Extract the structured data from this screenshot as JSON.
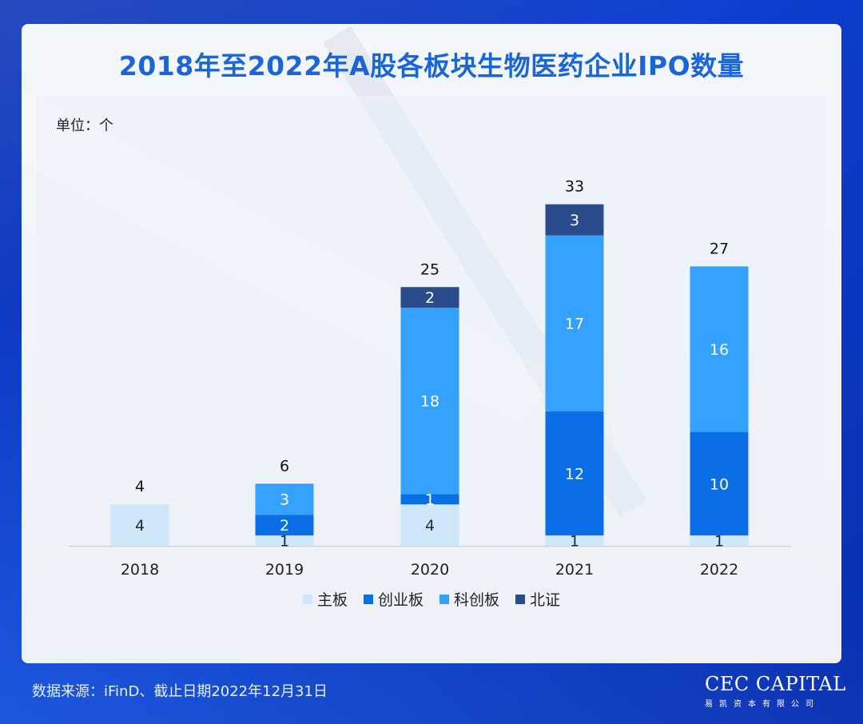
{
  "header": {
    "title": "2018年至2022年A股各板块生物医药企业IPO数量"
  },
  "unit_label": "单位：个",
  "colors": {
    "主板": "#cfe6fb",
    "创业板": "#0a6ee6",
    "科创板": "#34a0ff",
    "北证": "#2a4b8c"
  },
  "chart_data": {
    "type": "bar",
    "stacked": true,
    "title": "2018年至2022年A股各板块生物医药企业IPO数量",
    "ylabel": "单位：个",
    "categories": [
      "2018",
      "2019",
      "2020",
      "2021",
      "2022"
    ],
    "series": [
      {
        "name": "主板",
        "values": [
          4,
          1,
          4,
          1,
          1
        ]
      },
      {
        "name": "创业板",
        "values": [
          0,
          2,
          1,
          12,
          10
        ]
      },
      {
        "name": "科创板",
        "values": [
          0,
          3,
          18,
          17,
          16
        ]
      },
      {
        "name": "北证",
        "values": [
          0,
          0,
          2,
          3,
          0
        ]
      }
    ],
    "totals": [
      4,
      6,
      25,
      33,
      27
    ],
    "ylim": [
      0,
      35
    ],
    "grid": false,
    "legend": "bottom"
  },
  "footer": {
    "source": "数据来源：iFinD、截止日期2022年12月31日",
    "logo_main": "CEC CAPITAL",
    "logo_sub": "易凯资本有限公司"
  }
}
